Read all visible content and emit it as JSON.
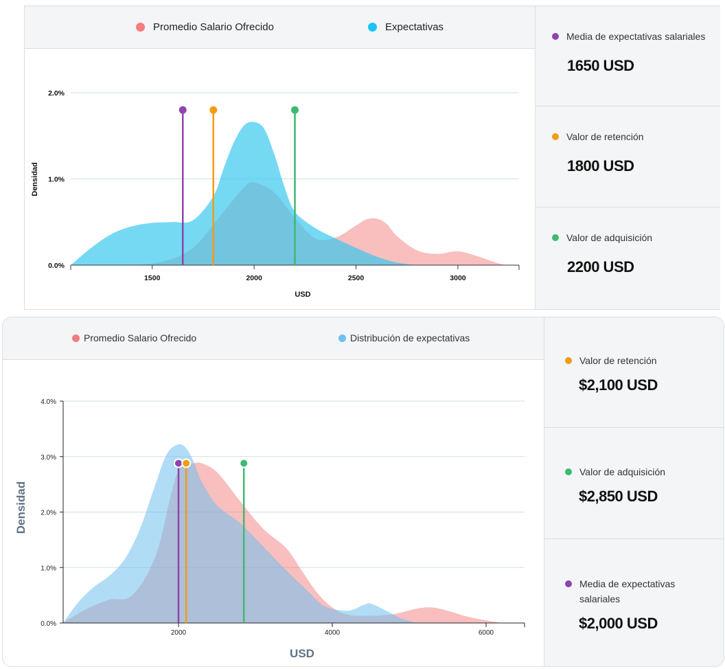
{
  "colors": {
    "offered": "#f47d7d",
    "expectations": "#33c7ef",
    "expectations_light": "#6fc0ee",
    "media": "#8e44ad",
    "retention": "#f39c12",
    "acquisition": "#3dba6f"
  },
  "top": {
    "legend": [
      {
        "label": "Promedio Salario Ofrecido",
        "color": "#f47d7d"
      },
      {
        "label": "Expectativas",
        "color": "#1ac3f2"
      }
    ],
    "stats": [
      {
        "label": "Media de expectativas salariales",
        "value": "1650 USD",
        "color": "#8e44ad"
      },
      {
        "label": "Valor de retención",
        "value": "1800 USD",
        "color": "#f39c12"
      },
      {
        "label": "Valor de adquisición",
        "value": "2200 USD",
        "color": "#3dba6f"
      }
    ]
  },
  "bottom": {
    "legend": [
      {
        "label": "Promedio Salario Ofrecido",
        "color": "#f47d7d"
      },
      {
        "label": "Distribución de expectativas",
        "color": "#6fc0ee"
      }
    ],
    "stats": [
      {
        "label": "Valor de retención",
        "value": "$2,100 USD",
        "color": "#f39c12"
      },
      {
        "label": "Valor de adquisición",
        "value": "$2,850 USD",
        "color": "#3dba6f"
      },
      {
        "label": "Media de expectativas salariales",
        "value": "$2,000 USD",
        "color": "#8e44ad"
      }
    ]
  },
  "chart_data": [
    {
      "type": "area",
      "xlabel": "USD",
      "ylabel": "Densidad",
      "xlim": [
        1100,
        3300
      ],
      "ylim": [
        0,
        2.0
      ],
      "x_ticks": [
        1500,
        2000,
        2500,
        3000
      ],
      "y_ticks": [
        {
          "v": 0,
          "label": "0.0%"
        },
        {
          "v": 1.0,
          "label": "1.0%"
        },
        {
          "v": 2.0,
          "label": "2.0%"
        }
      ],
      "grid": true,
      "legend": "top",
      "series": [
        {
          "name": "Promedio Salario Ofrecido",
          "color": "#f47d7d",
          "x": [
            1400,
            1550,
            1700,
            1850,
            1950,
            2000,
            2100,
            2200,
            2300,
            2400,
            2500,
            2550,
            2600,
            2650,
            2700,
            2800,
            2900,
            3000,
            3100,
            3200,
            3250
          ],
          "y": [
            0,
            0.04,
            0.2,
            0.62,
            0.9,
            0.96,
            0.84,
            0.55,
            0.31,
            0.32,
            0.46,
            0.53,
            0.54,
            0.48,
            0.34,
            0.17,
            0.13,
            0.16,
            0.1,
            0.02,
            0
          ]
        },
        {
          "name": "Expectativas",
          "color": "#33c7ef",
          "x": [
            1100,
            1200,
            1300,
            1400,
            1500,
            1600,
            1700,
            1800,
            1850,
            1900,
            1950,
            2000,
            2050,
            2100,
            2150,
            2200,
            2300,
            2400,
            2500,
            2600,
            2700,
            2800
          ],
          "y": [
            0,
            0.2,
            0.36,
            0.45,
            0.49,
            0.5,
            0.52,
            0.8,
            1.12,
            1.42,
            1.62,
            1.66,
            1.58,
            1.28,
            0.9,
            0.62,
            0.43,
            0.31,
            0.2,
            0.1,
            0.03,
            0
          ]
        }
      ],
      "markers": [
        {
          "name": "Media de expectativas salariales",
          "x": 1650,
          "y": 1.8,
          "color": "#8e44ad"
        },
        {
          "name": "Valor de retención",
          "x": 1800,
          "y": 1.8,
          "color": "#f39c12"
        },
        {
          "name": "Valor de adquisición",
          "x": 2200,
          "y": 1.8,
          "color": "#3dba6f"
        }
      ]
    },
    {
      "type": "area",
      "xlabel": "USD",
      "ylabel": "Densidad",
      "xlim": [
        500,
        6500
      ],
      "ylim": [
        0,
        4.0
      ],
      "x_ticks": [
        2000,
        4000,
        6000
      ],
      "y_ticks": [
        {
          "v": 0,
          "label": "0.0%"
        },
        {
          "v": 1.0,
          "label": "1.0%"
        },
        {
          "v": 2.0,
          "label": "2.0%"
        },
        {
          "v": 3.0,
          "label": "3.0%"
        },
        {
          "v": 4.0,
          "label": "4.0%"
        }
      ],
      "grid": true,
      "legend": "top",
      "series": [
        {
          "name": "Promedio Salario Ofrecido",
          "color": "#f47d7d",
          "x": [
            500,
            800,
            1100,
            1400,
            1700,
            1900,
            2000,
            2100,
            2200,
            2300,
            2500,
            2800,
            3100,
            3400,
            3600,
            3800,
            4000,
            4200,
            4500,
            4800,
            5100,
            5300,
            5500,
            5800,
            6200
          ],
          "y": [
            0,
            0.25,
            0.42,
            0.5,
            1.2,
            2.3,
            2.75,
            2.85,
            2.88,
            2.88,
            2.72,
            2.2,
            1.7,
            1.35,
            0.95,
            0.55,
            0.28,
            0.15,
            0.13,
            0.16,
            0.26,
            0.28,
            0.22,
            0.1,
            0
          ]
        },
        {
          "name": "Distribución de expectativas",
          "color": "#6fc0ee",
          "x": [
            500,
            700,
            900,
            1100,
            1300,
            1500,
            1700,
            1850,
            2000,
            2100,
            2200,
            2300,
            2500,
            2800,
            3100,
            3400,
            3700,
            3900,
            4200,
            4400,
            4500,
            4700,
            4900,
            5100
          ],
          "y": [
            0,
            0.38,
            0.65,
            0.85,
            1.15,
            1.7,
            2.5,
            3.05,
            3.22,
            3.15,
            2.9,
            2.55,
            2.12,
            1.8,
            1.38,
            0.95,
            0.55,
            0.3,
            0.22,
            0.32,
            0.35,
            0.22,
            0.08,
            0
          ]
        }
      ],
      "markers": [
        {
          "name": "Media de expectativas salariales",
          "x": 2000,
          "y": 2.88,
          "color": "#8e44ad"
        },
        {
          "name": "Valor de retención",
          "x": 2100,
          "y": 2.88,
          "color": "#f39c12"
        },
        {
          "name": "Valor de adquisición",
          "x": 2850,
          "y": 2.88,
          "color": "#3dba6f"
        }
      ]
    }
  ]
}
